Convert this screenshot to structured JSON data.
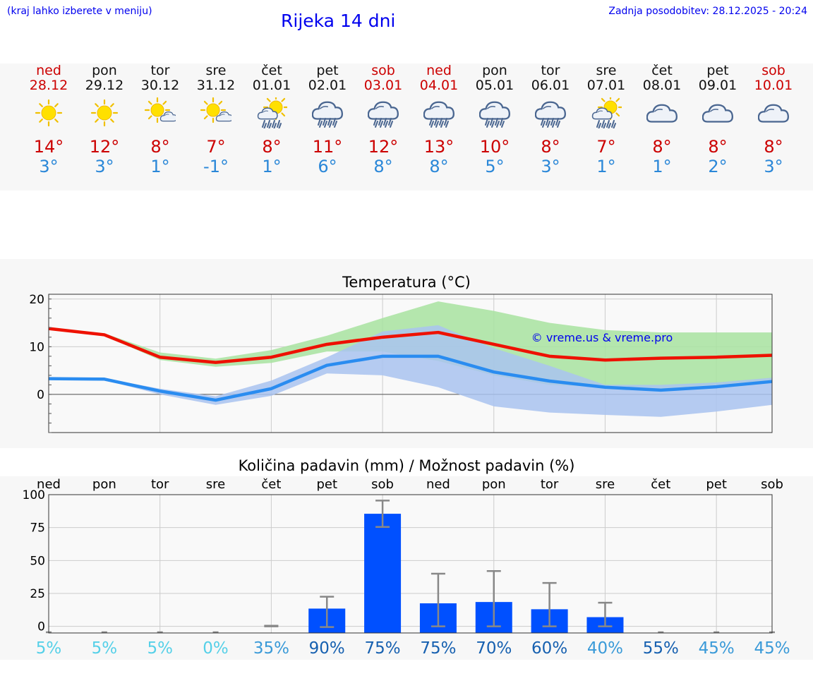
{
  "header": {
    "hint": "(kraj lahko izberete v meniju)",
    "title": "Rijeka 14 dni",
    "updated": "Zadnja posodobitev: 28.12.2025 - 20:24"
  },
  "days": [
    {
      "name": "ned",
      "date": "28.12",
      "weekend": true,
      "icon": "sun-icon",
      "max": "14°",
      "min": "3°"
    },
    {
      "name": "pon",
      "date": "29.12",
      "weekend": false,
      "icon": "sun-icon",
      "max": "12°",
      "min": "3°"
    },
    {
      "name": "tor",
      "date": "30.12",
      "weekend": false,
      "icon": "sun-cloud-icon",
      "max": "8°",
      "min": "1°"
    },
    {
      "name": "sre",
      "date": "31.12",
      "weekend": false,
      "icon": "sun-cloud-icon",
      "max": "7°",
      "min": "-1°"
    },
    {
      "name": "čet",
      "date": "01.01",
      "weekend": false,
      "icon": "sun-rain-icon",
      "max": "8°",
      "min": "1°"
    },
    {
      "name": "pet",
      "date": "02.01",
      "weekend": false,
      "icon": "rain-icon",
      "max": "11°",
      "min": "6°"
    },
    {
      "name": "sob",
      "date": "03.01",
      "weekend": true,
      "icon": "rain-icon",
      "max": "12°",
      "min": "8°"
    },
    {
      "name": "ned",
      "date": "04.01",
      "weekend": true,
      "icon": "rain-icon",
      "max": "13°",
      "min": "8°"
    },
    {
      "name": "pon",
      "date": "05.01",
      "weekend": false,
      "icon": "rain-icon",
      "max": "10°",
      "min": "5°"
    },
    {
      "name": "tor",
      "date": "06.01",
      "weekend": false,
      "icon": "rain-icon",
      "max": "8°",
      "min": "3°"
    },
    {
      "name": "sre",
      "date": "07.01",
      "weekend": false,
      "icon": "sun-rain-icon",
      "max": "7°",
      "min": "1°"
    },
    {
      "name": "čet",
      "date": "08.01",
      "weekend": false,
      "icon": "cloud-icon",
      "max": "8°",
      "min": "1°"
    },
    {
      "name": "pet",
      "date": "09.01",
      "weekend": false,
      "icon": "cloud-icon",
      "max": "8°",
      "min": "2°"
    },
    {
      "name": "sob",
      "date": "10.01",
      "weekend": true,
      "icon": "cloud-icon",
      "max": "8°",
      "min": "3°"
    }
  ],
  "colors": {
    "max_line": "#ee1100",
    "min_line": "#2a8cf0",
    "max_band": "#a8e3a0",
    "min_band": "#a9c3f0",
    "overlap_band": "#79c6a0",
    "bar": "#0050ff",
    "error_bar": "#888888"
  },
  "chart_data": [
    {
      "type": "line",
      "title": "Temperatura (°C)",
      "watermark": "© vreme.us & vreme.pro",
      "ylim": [
        -8,
        21
      ],
      "yticks": [
        0,
        10,
        20
      ],
      "x": [
        0,
        1,
        2,
        3,
        4,
        5,
        6,
        7,
        8,
        9,
        10,
        11,
        12,
        13
      ],
      "series": [
        {
          "name": "max",
          "values": [
            13.8,
            12.5,
            7.8,
            6.7,
            7.8,
            10.5,
            12.0,
            13.0,
            10.5,
            8.0,
            7.2,
            7.6,
            7.8,
            8.2
          ],
          "band_low": [
            13.8,
            12.3,
            7.2,
            5.8,
            6.6,
            9.0,
            9.0,
            7.0,
            4.0,
            2.0,
            1.5,
            1.2,
            2.0,
            3.0
          ],
          "band_high": [
            13.8,
            12.8,
            8.8,
            7.5,
            9.3,
            12.3,
            16.0,
            19.5,
            17.5,
            15.0,
            13.5,
            13.0,
            13.0,
            13.0
          ]
        },
        {
          "name": "min",
          "values": [
            3.3,
            3.2,
            0.7,
            -1.2,
            1.2,
            6.1,
            8.0,
            8.0,
            4.7,
            2.8,
            1.5,
            0.9,
            1.6,
            2.7
          ],
          "band_low": [
            3.3,
            3.0,
            0.0,
            -2.2,
            -0.3,
            4.4,
            4.0,
            1.5,
            -2.5,
            -3.8,
            -4.3,
            -4.7,
            -3.6,
            -2.2
          ],
          "band_high": [
            3.3,
            3.4,
            1.2,
            -0.4,
            2.9,
            7.8,
            13.2,
            14.5,
            9.7,
            6.0,
            2.0,
            2.0,
            2.5,
            3.5
          ]
        }
      ]
    },
    {
      "type": "bar",
      "title": "Količina padavin (mm) / Možnost padavin (%)",
      "ylim": [
        -5,
        100
      ],
      "yticks": [
        0,
        25,
        50,
        75,
        100
      ],
      "categories": [
        "ned",
        "pon",
        "tor",
        "sre",
        "čet",
        "pet",
        "sob",
        "ned",
        "pon",
        "tor",
        "sre",
        "čet",
        "pet",
        "sob"
      ],
      "values": [
        0,
        0,
        0,
        0,
        0,
        13.5,
        85.5,
        17.5,
        18.5,
        13,
        7,
        0,
        0,
        0
      ],
      "err_low": [
        0,
        0,
        0,
        0,
        0,
        -0.5,
        75.5,
        0,
        0,
        0,
        0,
        0,
        0,
        0
      ],
      "err_high": [
        0,
        0,
        0,
        0,
        0.5,
        22.5,
        95.5,
        40,
        42,
        33,
        18,
        0,
        0,
        0
      ],
      "probability": [
        "5%",
        "5%",
        "5%",
        "0%",
        "35%",
        "90%",
        "75%",
        "75%",
        "70%",
        "60%",
        "40%",
        "55%",
        "45%",
        "45%"
      ],
      "probability_colors": [
        "#55d0e8",
        "#55d0e8",
        "#55d0e8",
        "#55d0e8",
        "#3a9ad8",
        "#1660b0",
        "#1660b0",
        "#1660b0",
        "#1660b0",
        "#1660b0",
        "#3a9ad8",
        "#1660b0",
        "#3a9ad8",
        "#3a9ad8"
      ]
    }
  ]
}
